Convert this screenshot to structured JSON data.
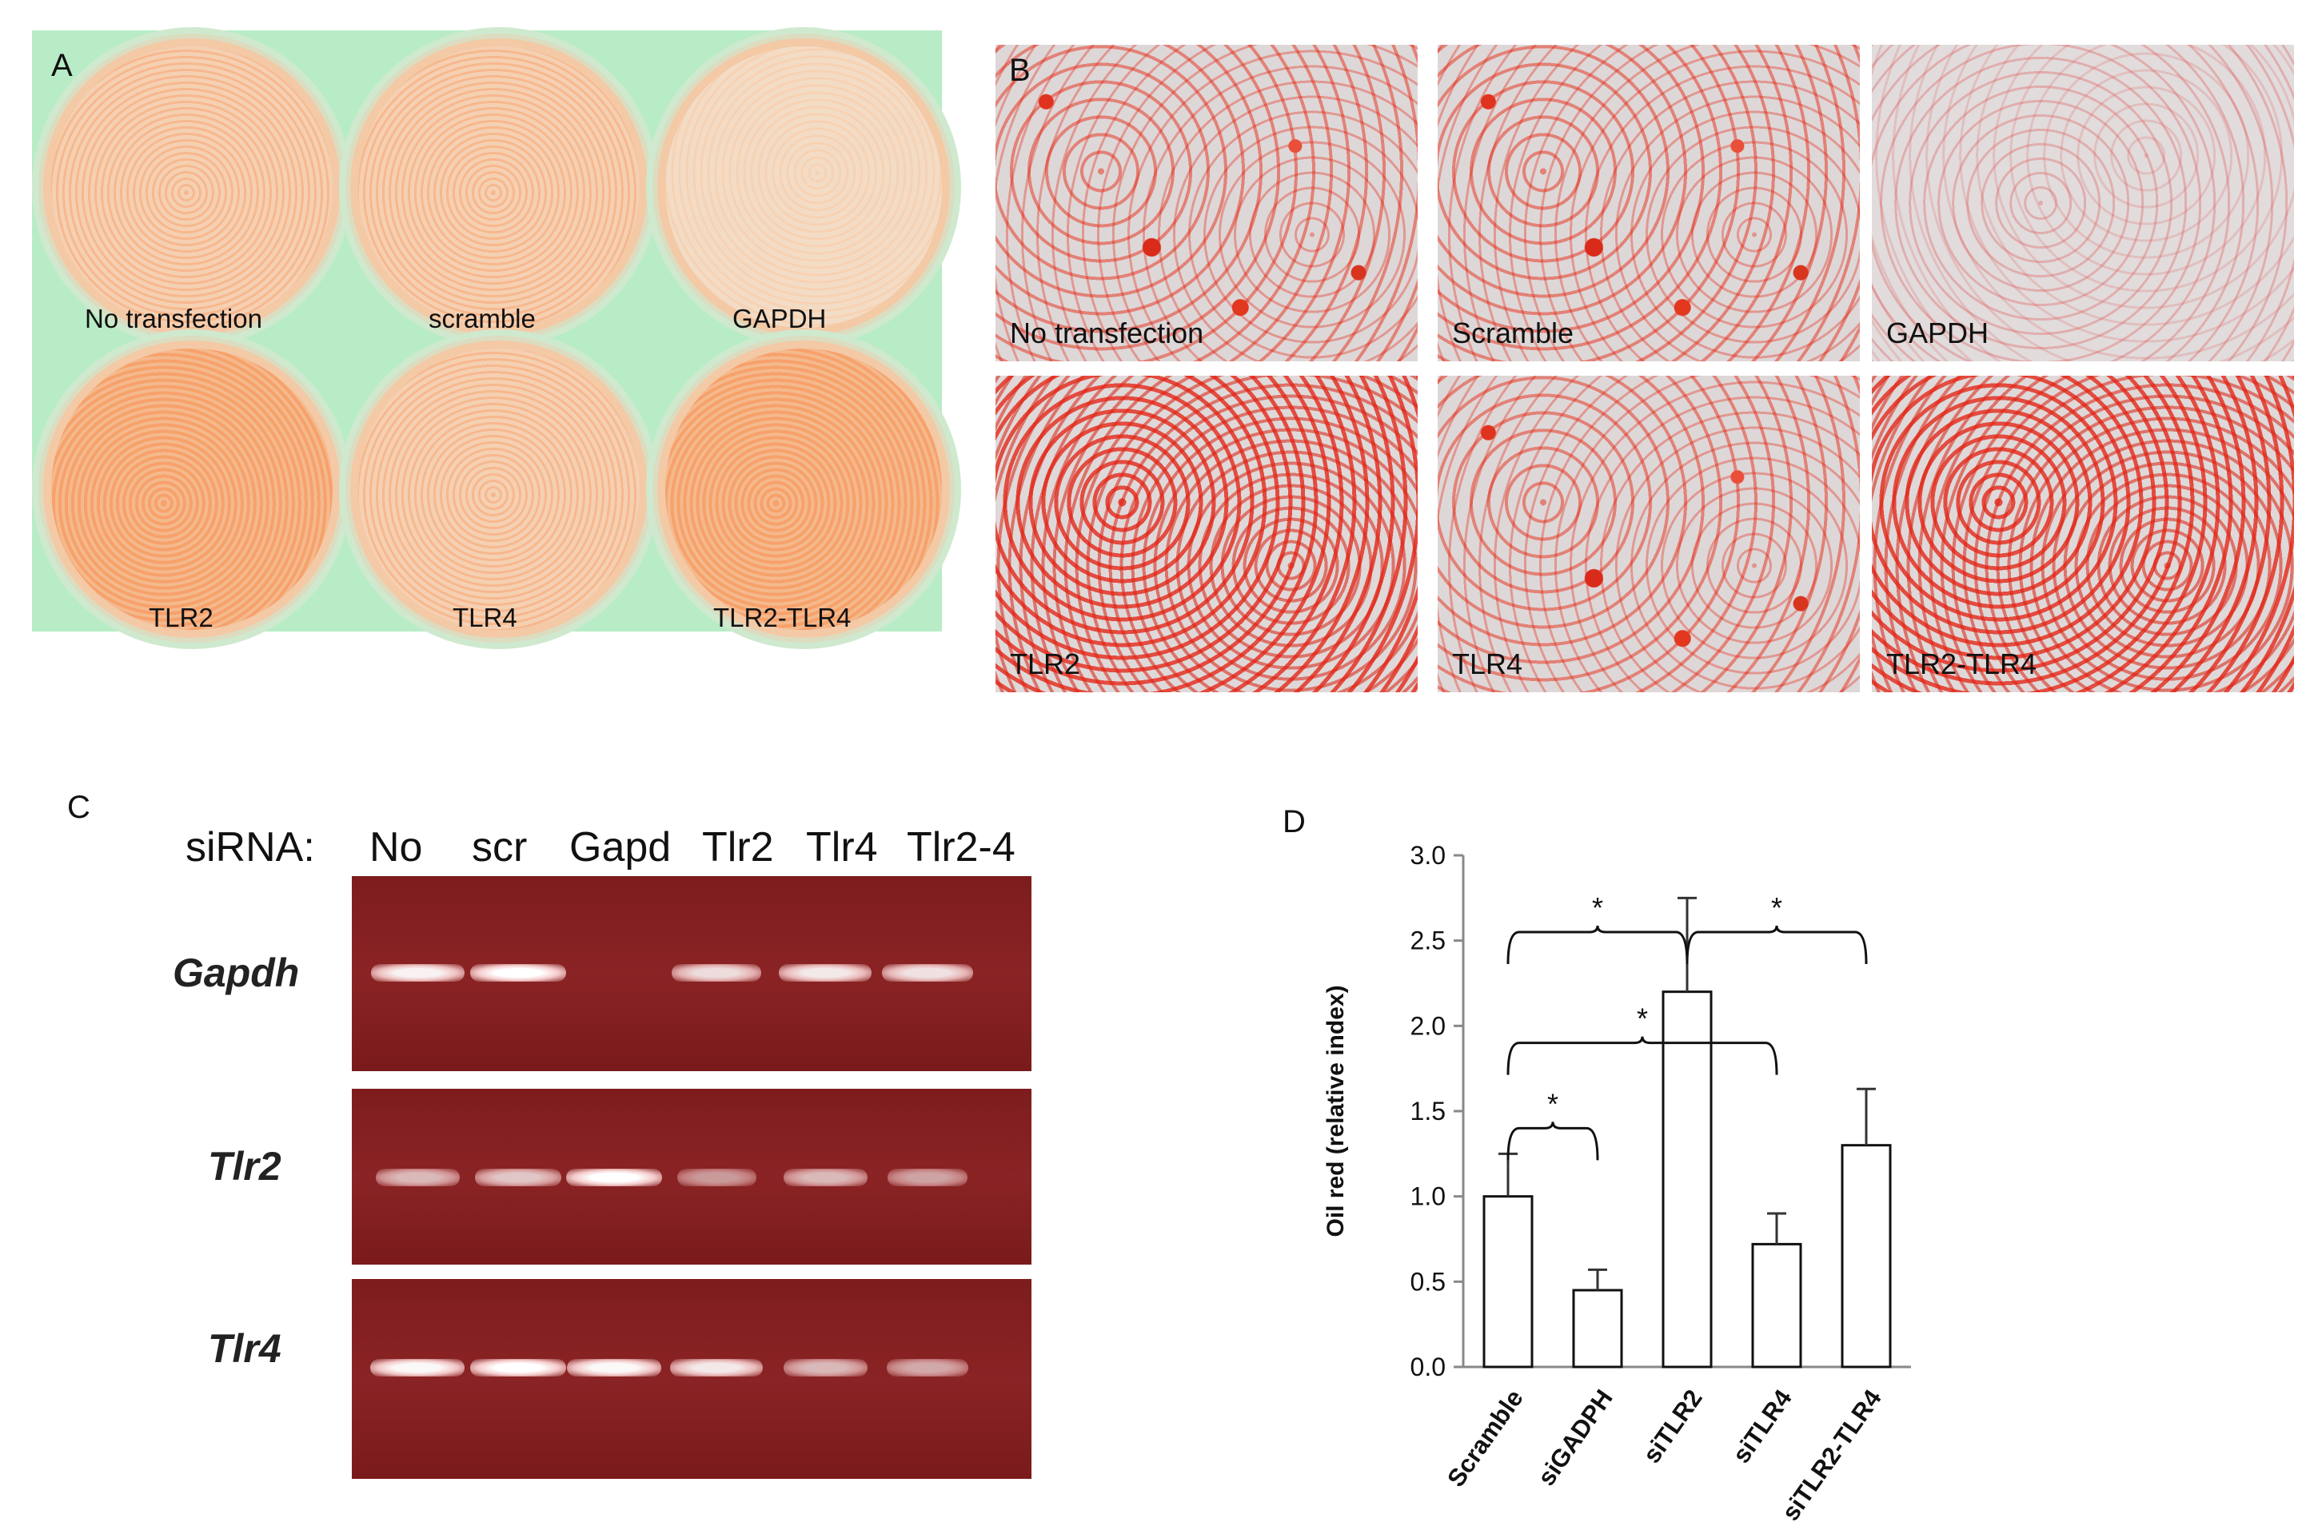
{
  "panel_a": {
    "letter": "A",
    "wells": [
      "No transfection",
      "scramble",
      "GAPDH",
      "TLR2",
      "TLR4",
      "TLR2-TLR4"
    ]
  },
  "panel_b": {
    "letter": "B",
    "images": [
      "No transfection",
      "Scramble",
      "GAPDH",
      "TLR2",
      "TLR4",
      "TLR2-TLR4"
    ]
  },
  "panel_c": {
    "letter": "C",
    "header": "siRNA:",
    "lanes": [
      "No",
      "scr",
      "Gapd",
      "Tlr2",
      "Tlr4",
      "Tlr2-4"
    ],
    "genes": [
      "Gapdh",
      "Tlr2",
      "Tlr4"
    ],
    "band_intensity": [
      [
        0.9,
        1.0,
        0.0,
        0.75,
        0.85,
        0.8
      ],
      [
        0.5,
        0.6,
        1.0,
        0.3,
        0.5,
        0.35
      ],
      [
        0.95,
        1.0,
        0.95,
        0.85,
        0.5,
        0.4
      ]
    ]
  },
  "panel_d": {
    "letter": "D",
    "significance_marker": "*"
  },
  "chart_data": {
    "type": "bar",
    "categories": [
      "Scramble",
      "siGADPH",
      "siTLR2",
      "siTLR4",
      "siTLR2-TLR4"
    ],
    "values": [
      1.0,
      0.45,
      2.2,
      0.72,
      1.3
    ],
    "error": [
      0.25,
      0.12,
      0.55,
      0.18,
      0.33
    ],
    "ylabel": "Oil red  (relative index)",
    "ylim": [
      0,
      3.0
    ],
    "yticks": [
      "0.0",
      "0.5",
      "1.0",
      "1.5",
      "2.0",
      "2.5",
      "3.0"
    ],
    "significance": [
      {
        "from": "Scramble",
        "to": "siTLR2",
        "label": "*"
      },
      {
        "from": "siTLR2",
        "to": "siTLR2-TLR4",
        "label": "*"
      },
      {
        "from": "Scramble",
        "to": "siTLR4",
        "label": "*"
      },
      {
        "from": "Scramble",
        "to": "siGADPH",
        "label": "*"
      }
    ]
  }
}
